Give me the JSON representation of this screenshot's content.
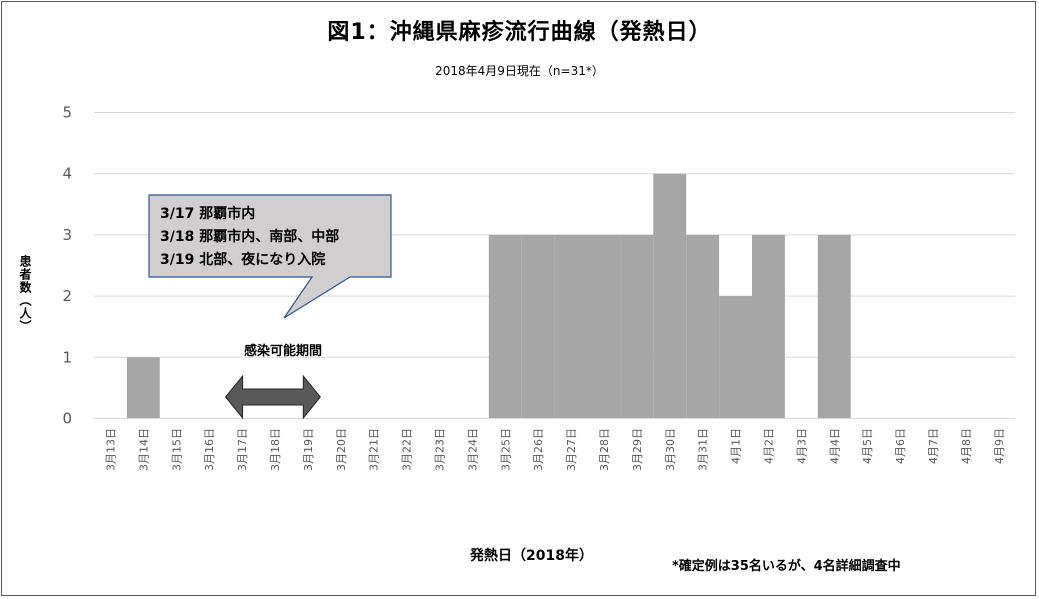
{
  "chart_data": {
    "type": "bar",
    "title": "図1：沖縄県麻疹流行曲線（発熱日）",
    "subtitle": "2018年4月9日現在（n=31*）",
    "xlabel": "発熱日（2018年）",
    "ylabel": "患者数（人）",
    "ylim": [
      0,
      5
    ],
    "yticks": [
      0,
      1,
      2,
      3,
      4,
      5
    ],
    "grid": true,
    "categories": [
      "3月13日",
      "3月14日",
      "3月15日",
      "3月16日",
      "3月17日",
      "3月18日",
      "3月19日",
      "3月20日",
      "3月21日",
      "3月22日",
      "3月23日",
      "3月24日",
      "3月25日",
      "3月26日",
      "3月27日",
      "3月28日",
      "3月29日",
      "3月30日",
      "3月31日",
      "4月1日",
      "4月2日",
      "4月3日",
      "4月4日",
      "4月5日",
      "4月6日",
      "4月7日",
      "4月8日",
      "4月9日"
    ],
    "values": [
      0,
      1,
      0,
      0,
      0,
      0,
      0,
      0,
      0,
      0,
      0,
      0,
      3,
      3,
      3,
      3,
      3,
      4,
      3,
      2,
      3,
      0,
      3,
      0,
      0,
      0,
      0,
      0
    ],
    "bar_color": "#a6a6a6",
    "annotation": {
      "lines": [
        "3/17 那覇市内",
        "3/18 那覇市内、南部、中部",
        "3/19 北部、夜になり入院"
      ],
      "fill": "#d0cece",
      "border": "#2f5597"
    },
    "period": {
      "label": "感染可能期間",
      "start": "3月17日",
      "end": "3月20日",
      "arrow_color": "#595959"
    },
    "footnote": "*確定例は35名いるが、4名詳細調査中"
  }
}
